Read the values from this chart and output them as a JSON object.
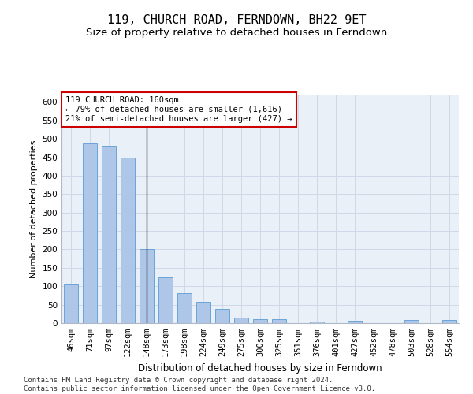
{
  "title1": "119, CHURCH ROAD, FERNDOWN, BH22 9ET",
  "title2": "Size of property relative to detached houses in Ferndown",
  "xlabel": "Distribution of detached houses by size in Ferndown",
  "ylabel": "Number of detached properties",
  "categories": [
    "46sqm",
    "71sqm",
    "97sqm",
    "122sqm",
    "148sqm",
    "173sqm",
    "198sqm",
    "224sqm",
    "249sqm",
    "275sqm",
    "300sqm",
    "325sqm",
    "351sqm",
    "376sqm",
    "401sqm",
    "427sqm",
    "452sqm",
    "478sqm",
    "503sqm",
    "528sqm",
    "554sqm"
  ],
  "values": [
    105,
    487,
    482,
    450,
    202,
    123,
    82,
    57,
    38,
    16,
    10,
    10,
    0,
    5,
    0,
    7,
    0,
    0,
    8,
    0,
    8
  ],
  "bar_color": "#aec6e8",
  "bar_edge_color": "#5b9bd5",
  "highlight_bar_index": 4,
  "highlight_line_color": "#1a1a1a",
  "annotation_line1": "119 CHURCH ROAD: 160sqm",
  "annotation_line2": "← 79% of detached houses are smaller (1,616)",
  "annotation_line3": "21% of semi-detached houses are larger (427) →",
  "annotation_box_color": "#ffffff",
  "annotation_box_edge_color": "#cc0000",
  "ylim": [
    0,
    620
  ],
  "yticks": [
    0,
    50,
    100,
    150,
    200,
    250,
    300,
    350,
    400,
    450,
    500,
    550,
    600
  ],
  "grid_color": "#d0d8e8",
  "bg_color": "#eaf0f8",
  "footer": "Contains HM Land Registry data © Crown copyright and database right 2024.\nContains public sector information licensed under the Open Government Licence v3.0.",
  "title1_fontsize": 11,
  "title2_fontsize": 9.5,
  "xlabel_fontsize": 8.5,
  "ylabel_fontsize": 8,
  "tick_fontsize": 7.5,
  "annotation_fontsize": 7.5,
  "footer_fontsize": 6.5
}
